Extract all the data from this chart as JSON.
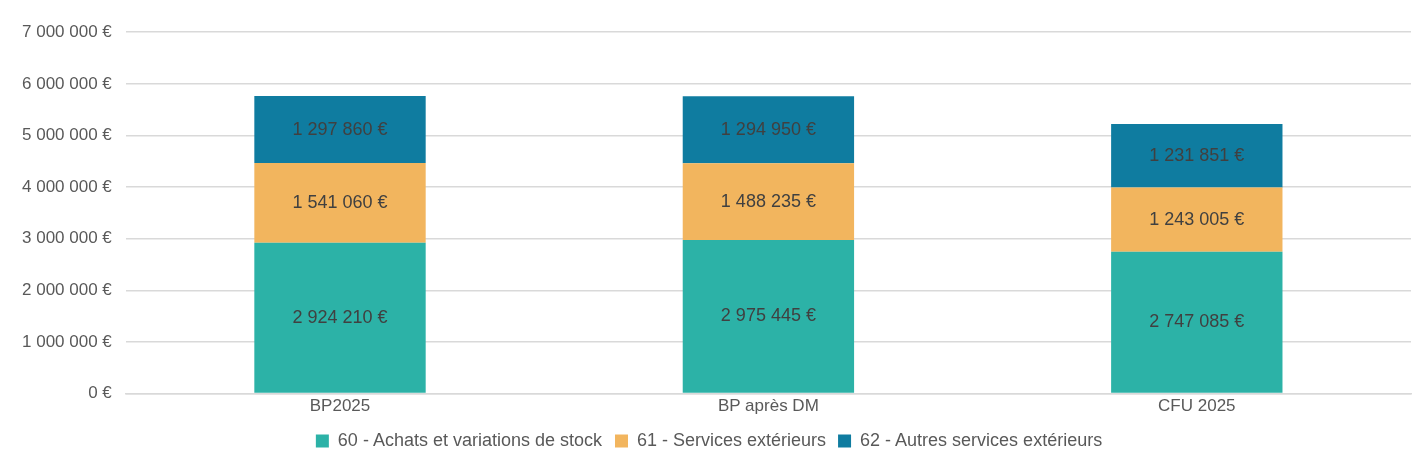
{
  "chart_data": {
    "type": "bar",
    "stacked": true,
    "categories": [
      "BP2025",
      "BP après DM",
      "CFU 2025"
    ],
    "series": [
      {
        "name": "60 - Achats et variations de stock",
        "color": "#2cb2a7",
        "values": [
          2924210,
          2975445,
          2747085
        ],
        "value_labels": [
          "2 924 210 €",
          "2 975 445 €",
          "2 747 085 €"
        ]
      },
      {
        "name": "61 - Services extérieurs",
        "color": "#f2b55e",
        "values": [
          1541060,
          1488235,
          1243005
        ],
        "value_labels": [
          "1 541 060 €",
          "1 488 235 €",
          "1 243 005 €"
        ]
      },
      {
        "name": "62 - Autres services extérieurs",
        "color": "#0f7ca0",
        "values": [
          1297860,
          1294950,
          1231851
        ],
        "value_labels": [
          "1 297 860 €",
          "1 294 950 €",
          "1 231 851 €"
        ]
      }
    ],
    "ylim": [
      0,
      7000000
    ],
    "yticks": [
      {
        "value": 0,
        "label": "0 €"
      },
      {
        "value": 1000000,
        "label": "1 000 000 €"
      },
      {
        "value": 2000000,
        "label": "2 000 000 €"
      },
      {
        "value": 3000000,
        "label": "3 000 000 €"
      },
      {
        "value": 4000000,
        "label": "4 000 000 €"
      },
      {
        "value": 5000000,
        "label": "5 000 000 €"
      },
      {
        "value": 6000000,
        "label": "6 000 000 €"
      },
      {
        "value": 7000000,
        "label": "7 000 000 €"
      }
    ],
    "grid": "y",
    "legend": "bottom"
  }
}
